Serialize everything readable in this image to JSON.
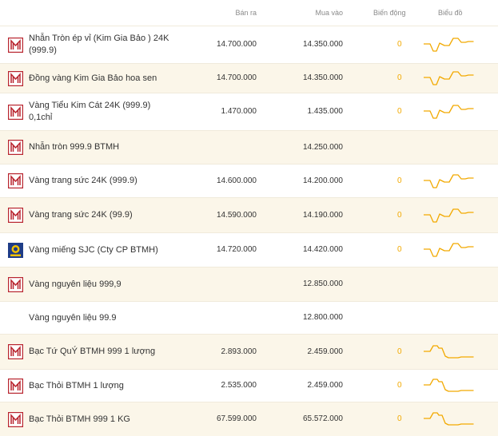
{
  "header": {
    "sell": "Bán ra",
    "buy": "Mua vào",
    "change": "Biến động",
    "chart": "Biểu đồ"
  },
  "colors": {
    "accent": "#f2a900",
    "logo": "#b8242e",
    "row_alt": "#fbf6e9"
  },
  "rows": [
    {
      "logo": "btmh-logo",
      "name_lines": [
        "Nhẫn Tròn ép vỉ (Kim Gia Bảo ) 24K",
        "(999.9)"
      ],
      "sell": "14.700.000",
      "buy": "14.350.000",
      "change": "0",
      "chart": "gold-trend"
    },
    {
      "logo": "btmh-logo",
      "name_lines": [
        "Đồng vàng Kim Gia Bảo hoa sen"
      ],
      "sell": "14.700.000",
      "buy": "14.350.000",
      "change": "0",
      "chart": "gold-trend"
    },
    {
      "logo": "btmh-logo",
      "name_lines": [
        "Vàng Tiểu Kim Cát 24K (999.9)",
        "0,1chỉ"
      ],
      "sell": "1.470.000",
      "buy": "1.435.000",
      "change": "0",
      "chart": "gold-trend"
    },
    {
      "logo": "btmh-logo",
      "name_lines": [
        "Nhẫn tròn 999.9 BTMH"
      ],
      "sell": "",
      "buy": "14.250.000",
      "change": "",
      "chart": ""
    },
    {
      "logo": "btmh-logo",
      "name_lines": [
        "Vàng trang sức 24K (999.9)"
      ],
      "sell": "14.600.000",
      "buy": "14.200.000",
      "change": "0",
      "chart": "gold-trend"
    },
    {
      "logo": "btmh-logo",
      "name_lines": [
        "Vàng trang sức 24K (99.9)"
      ],
      "sell": "14.590.000",
      "buy": "14.190.000",
      "change": "0",
      "chart": "gold-trend"
    },
    {
      "logo": "sjc-logo",
      "name_lines": [
        "Vàng miếng SJC (Cty CP BTMH)"
      ],
      "sell": "14.720.000",
      "buy": "14.420.000",
      "change": "0",
      "chart": "gold-trend"
    },
    {
      "logo": "btmh-logo",
      "name_lines": [
        "Vàng nguyên liệu 999,9"
      ],
      "sell": "",
      "buy": "12.850.000",
      "change": "",
      "chart": ""
    },
    {
      "logo": "",
      "name_lines": [
        "Vàng nguyên liệu 99.9"
      ],
      "sell": "",
      "buy": "12.800.000",
      "change": "",
      "chart": ""
    },
    {
      "logo": "btmh-logo",
      "name_lines": [
        "Bạc Tứ QuÝ BTMH 999 1 lượng"
      ],
      "sell": "2.893.000",
      "buy": "2.459.000",
      "change": "0",
      "chart": "silver-trend"
    },
    {
      "logo": "btmh-logo",
      "name_lines": [
        "Bạc Thỏi BTMH 1 lượng"
      ],
      "sell": "2.535.000",
      "buy": "2.459.000",
      "change": "0",
      "chart": "silver-trend"
    },
    {
      "logo": "btmh-logo",
      "name_lines": [
        "Bạc Thỏi BTMH 999 1 KG"
      ],
      "sell": "67.599.000",
      "buy": "65.572.000",
      "change": "0",
      "chart": "silver-trend"
    }
  ]
}
